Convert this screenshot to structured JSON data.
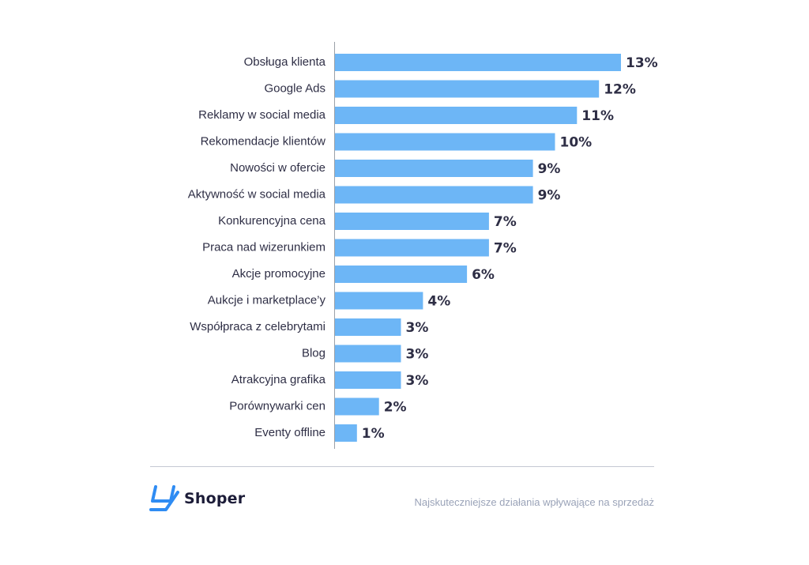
{
  "chart_data": {
    "type": "bar",
    "orientation": "horizontal",
    "categories": [
      "Obsługa klienta",
      "Google Ads",
      "Reklamy w social media",
      "Rekomendacje klientów",
      "Nowości w ofercie",
      "Aktywność w social media",
      "Konkurencyjna cena",
      "Praca nad wizerunkiem",
      "Akcje promocyjne",
      "Aukcje i marketplace’y",
      "Współpraca z celebrytami",
      "Blog",
      "Atrakcyjna grafika",
      "Porównywarki cen",
      "Eventy offline"
    ],
    "values": [
      13,
      12,
      11,
      10,
      9,
      9,
      7,
      7,
      6,
      4,
      3,
      3,
      3,
      2,
      1
    ],
    "value_labels": [
      "13%",
      "12%",
      "11%",
      "10%",
      "9%",
      "9%",
      "7%",
      "7%",
      "6%",
      "4%",
      "3%",
      "3%",
      "3%",
      "2%",
      "1%"
    ],
    "xlim": [
      0,
      13
    ],
    "grid": false,
    "legend": "none",
    "colors": {
      "bar": "#6db6f6",
      "axis": "#9aa0a8",
      "text": "#2e2e45"
    }
  },
  "footer": {
    "brand": "Shoper",
    "logo_icon": "shoper-logo-icon",
    "brand_color": "#2f8cf3",
    "caption": "Najskuteczniejsze działania wpływające na sprzedaż"
  }
}
